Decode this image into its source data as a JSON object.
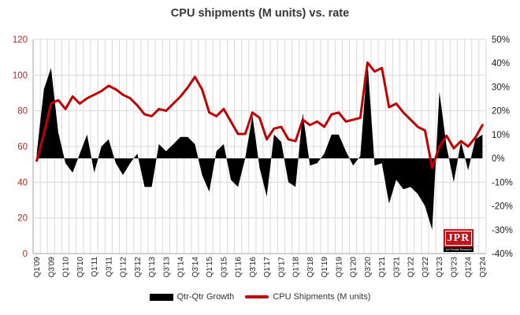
{
  "title": "CPU shipments (M units) vs. rate",
  "legend": {
    "growth_label": "Qtr-Qtr Growth",
    "shipments_label": "CPU Shipments (M units)"
  },
  "logo": {
    "text": "JPR",
    "subtext": "Jon Peddie Research"
  },
  "colors": {
    "line": "#c00000",
    "area": "#000000",
    "left_axis_text": "#c51f1f",
    "right_axis_text": "#1a1a1a",
    "x_axis_text": "#1a1a1a",
    "grid": "#d9d9d9",
    "axis_line": "#a6a6a6",
    "logo_red": "#c41218"
  },
  "chart_data": {
    "type": "combo-area-line",
    "title": "CPU shipments (M units) vs. rate",
    "x_categories": [
      "Q1'09",
      "Q2'09",
      "Q3'09",
      "Q4'09",
      "Q1'10",
      "Q2'10",
      "Q3'10",
      "Q4'10",
      "Q1'11",
      "Q2'11",
      "Q3'11",
      "Q4'11",
      "Q1'12",
      "Q2'12",
      "Q3'12",
      "Q4'12",
      "Q1'13",
      "Q2'13",
      "Q3'13",
      "Q4'13",
      "Q1'14",
      "Q2'14",
      "Q3'14",
      "Q4'14",
      "Q1'15",
      "Q2'15",
      "Q3'15",
      "Q4'15",
      "Q1'16",
      "Q2'16",
      "Q3'16",
      "Q4'16",
      "Q1'17",
      "Q2'17",
      "Q3'17",
      "Q4'17",
      "Q1'18",
      "Q2'18",
      "Q3'18",
      "Q4'18",
      "Q1'19",
      "Q2'19",
      "Q3'19",
      "Q4'19",
      "Q1'20",
      "Q2'20",
      "Q3'20",
      "Q4'20",
      "Q1'21",
      "Q2'21",
      "Q3'21",
      "Q4'21",
      "Q1'22",
      "Q2'22",
      "Q3'22",
      "Q4'22",
      "Q1'23",
      "Q2'23",
      "Q3'23",
      "Q4'23",
      "Q1'24",
      "Q2'24",
      "Q3'24"
    ],
    "x_tick_step": 2,
    "series": [
      {
        "name": "Qtr-Qtr Growth",
        "type": "area",
        "axis": "right",
        "color": "#000000",
        "unit": "%",
        "values": [
          2,
          29,
          38,
          11,
          -2,
          -6,
          2,
          10,
          -6,
          5,
          8,
          -2,
          -7,
          -2,
          2,
          -12,
          -12,
          6,
          3,
          6,
          9,
          9,
          6,
          -7,
          -14,
          3,
          6,
          -9,
          -12,
          0,
          18,
          -4,
          -16,
          10,
          7,
          -10,
          -12,
          19,
          -3,
          -2,
          2,
          10,
          10,
          3,
          -3,
          1,
          41,
          -3,
          -2,
          -19,
          -9,
          -13,
          -12,
          -15,
          -20,
          -30,
          28,
          5,
          -10,
          7,
          -5,
          8,
          10
        ]
      },
      {
        "name": "CPU Shipments (M units)",
        "type": "line",
        "axis": "left",
        "color": "#c00000",
        "unit": "M units",
        "values": [
          52,
          67,
          84,
          86,
          81,
          88,
          84,
          87,
          89,
          91,
          94,
          92,
          89,
          87,
          83,
          78,
          77,
          81,
          80,
          84,
          88,
          93,
          99,
          92,
          79,
          77,
          81,
          74,
          67,
          67,
          79,
          76,
          64,
          70,
          71,
          64,
          63,
          75,
          72,
          74,
          71,
          78,
          79,
          74,
          75,
          76,
          107,
          102,
          104,
          82,
          84,
          79,
          75,
          71,
          69,
          48,
          60,
          66,
          59,
          63,
          60,
          65,
          72
        ]
      }
    ],
    "left_axis": {
      "min": 0,
      "max": 120,
      "ticks": [
        0,
        20,
        40,
        60,
        80,
        100,
        120
      ]
    },
    "right_axis": {
      "min": -40,
      "max": 50,
      "ticks_pct": [
        50,
        40,
        30,
        20,
        10,
        0,
        -10,
        -20,
        -30,
        -40
      ]
    },
    "grid": true,
    "legend_position": "bottom"
  }
}
